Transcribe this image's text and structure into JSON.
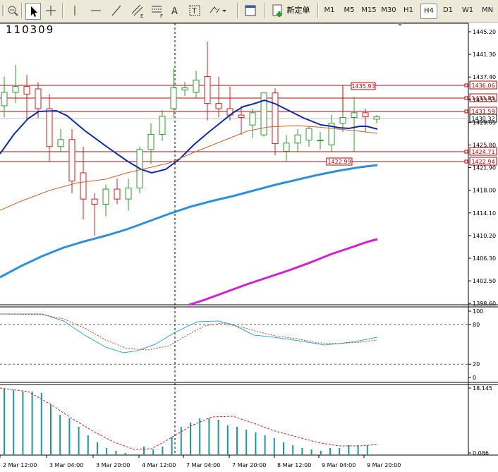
{
  "toolbar": {
    "new_order_label": "新定单",
    "timeframes": [
      "M1",
      "M5",
      "M15",
      "M30",
      "H1",
      "H4",
      "D1",
      "W1",
      "MN"
    ],
    "active_timeframe": "H4"
  },
  "chart": {
    "title": "110309",
    "price_labels": [
      "1445.20",
      "1441.30",
      "1437.40",
      "1433.55",
      "1429.65",
      "1425.80",
      "1421.90",
      "1418.00",
      "1414.10",
      "1410.20",
      "1406.30",
      "1402.50",
      "1398.60"
    ],
    "level_tags": [
      "1436.06",
      "1433.85",
      "1431.59",
      "1424.71",
      "1422.94"
    ],
    "current_price": "1430.32",
    "inline_labels": [
      "1435.93",
      "1422.99"
    ],
    "stoch_levels": [
      "100",
      "80",
      "20",
      "0"
    ],
    "vol_levels": [
      "18.145",
      "0.086"
    ],
    "time_labels": [
      "2 Mar 12:00",
      "3 Mar 04:00",
      "3 Mar 20:00",
      "4 Mar 12:00",
      "7 Mar 04:00",
      "7 Mar 20:00",
      "8 Mar 12:00",
      "9 Mar 04:00",
      "9 Mar 20:00"
    ],
    "colors": {
      "bull": "#2f9a2f",
      "bear": "#d02020",
      "ma_fast": "#102aa6",
      "ma_mid": "#c8642a",
      "ma_slow": "#2e90d8",
      "ma_long": "#d020d0",
      "level_line": "#c00000",
      "stoch_main": "#39a6d6",
      "stoch_signal": "#d04020",
      "volume": "#1a9a9a",
      "volume_signal": "#d02020"
    }
  }
}
